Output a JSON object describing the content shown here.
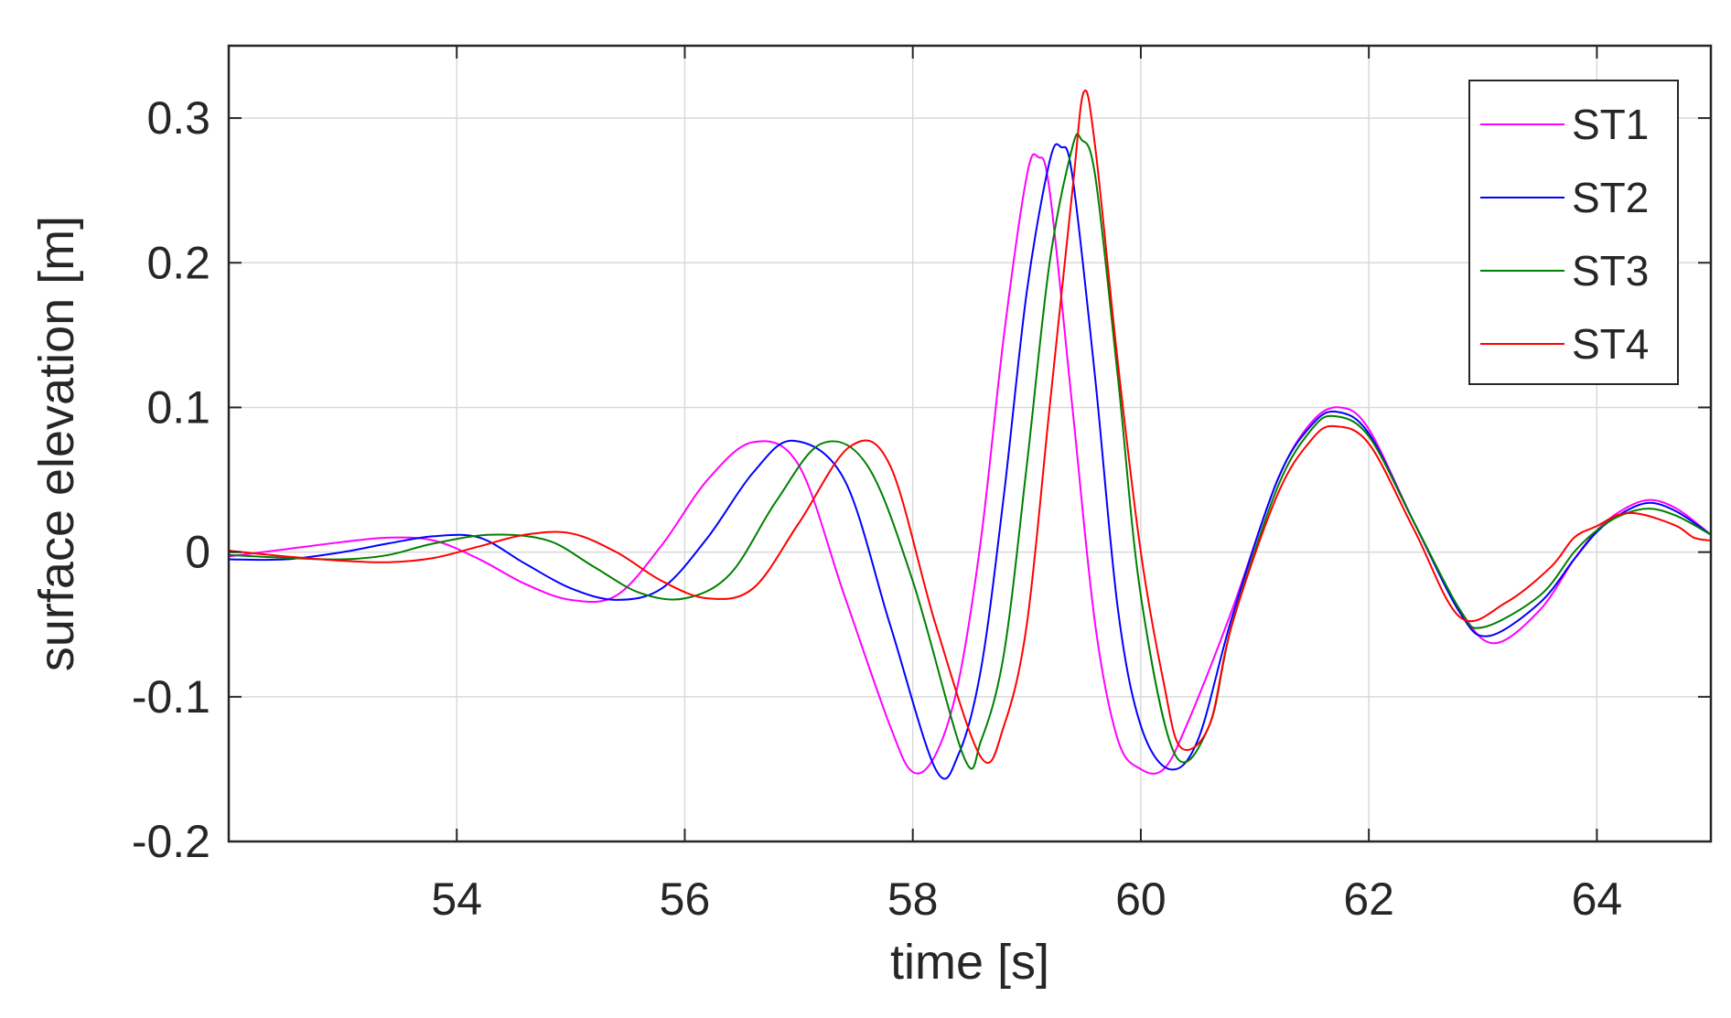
{
  "chart_data": {
    "type": "line",
    "xlabel": "time [s]",
    "ylabel": "surface elevation [m]",
    "xlim": [
      52,
      65
    ],
    "ylim": [
      -0.2,
      0.35
    ],
    "xticks": [
      54,
      56,
      58,
      60,
      62,
      64
    ],
    "xtick_labels": [
      "54",
      "56",
      "58",
      "60",
      "62",
      "64"
    ],
    "yticks": [
      -0.2,
      -0.1,
      0,
      0.1,
      0.2,
      0.3
    ],
    "ytick_labels": [
      "-0.2",
      "-0.1",
      "0",
      "0.1",
      "0.2",
      "0.3"
    ],
    "grid": true,
    "legend_position": "top-right",
    "series": [
      {
        "name": "ST1",
        "color": "#ff00ff",
        "x": [
          52.0,
          52.5,
          53.0,
          53.4,
          53.8,
          54.2,
          54.6,
          55.0,
          55.4,
          55.8,
          56.2,
          56.6,
          57.0,
          57.4,
          57.8,
          58.0,
          58.2,
          58.4,
          58.6,
          58.8,
          59.0,
          59.1,
          59.2,
          59.4,
          59.6,
          59.8,
          60.0,
          60.2,
          60.4,
          60.8,
          61.2,
          61.5,
          61.75,
          62.0,
          62.4,
          62.8,
          63.1,
          63.5,
          63.8,
          64.0,
          64.2,
          64.45,
          64.7,
          65.0
        ],
        "y": [
          -0.003,
          0.002,
          0.007,
          0.01,
          0.008,
          -0.005,
          -0.022,
          -0.033,
          -0.03,
          0.005,
          0.05,
          0.076,
          0.06,
          -0.03,
          -0.12,
          -0.152,
          -0.14,
          -0.09,
          0.01,
          0.15,
          0.26,
          0.273,
          0.25,
          0.1,
          -0.05,
          -0.13,
          -0.15,
          -0.15,
          -0.12,
          -0.04,
          0.05,
          0.09,
          0.1,
          0.085,
          0.02,
          -0.04,
          -0.063,
          -0.04,
          -0.005,
          0.015,
          0.028,
          0.036,
          0.03,
          0.012
        ]
      },
      {
        "name": "ST2",
        "color": "#0000ff",
        "x": [
          52.0,
          52.5,
          53.0,
          53.4,
          53.8,
          54.2,
          54.6,
          55.0,
          55.4,
          55.8,
          56.2,
          56.6,
          56.95,
          57.4,
          57.8,
          58.2,
          58.4,
          58.6,
          58.8,
          59.0,
          59.2,
          59.3,
          59.4,
          59.6,
          59.8,
          60.0,
          60.25,
          60.5,
          60.8,
          61.2,
          61.5,
          61.72,
          62.0,
          62.4,
          62.8,
          63.05,
          63.5,
          63.8,
          64.0,
          64.2,
          64.45,
          64.7,
          65.0
        ],
        "y": [
          -0.005,
          -0.005,
          0.0,
          0.006,
          0.011,
          0.01,
          -0.008,
          -0.025,
          -0.033,
          -0.025,
          0.01,
          0.055,
          0.077,
          0.05,
          -0.05,
          -0.15,
          -0.14,
          -0.08,
          0.04,
          0.18,
          0.27,
          0.28,
          0.26,
          0.12,
          -0.04,
          -0.12,
          -0.15,
          -0.13,
          -0.045,
          0.05,
          0.088,
          0.097,
          0.082,
          0.02,
          -0.042,
          -0.058,
          -0.035,
          -0.005,
          0.014,
          0.026,
          0.034,
          0.028,
          0.012
        ]
      },
      {
        "name": "ST3",
        "color": "#008000",
        "x": [
          52.0,
          52.5,
          53.0,
          53.4,
          53.8,
          54.3,
          54.8,
          55.2,
          55.6,
          56.0,
          56.4,
          56.8,
          57.2,
          57.6,
          58.0,
          58.45,
          58.6,
          58.8,
          59.0,
          59.2,
          59.4,
          59.48,
          59.6,
          59.8,
          60.0,
          60.3,
          60.6,
          60.8,
          61.2,
          61.5,
          61.7,
          62.0,
          62.4,
          62.8,
          63.0,
          63.5,
          63.8,
          64.0,
          64.2,
          64.45,
          64.7,
          65.0
        ],
        "y": [
          -0.002,
          -0.004,
          -0.005,
          -0.002,
          0.006,
          0.012,
          0.008,
          -0.01,
          -0.028,
          -0.032,
          -0.015,
          0.035,
          0.075,
          0.06,
          -0.02,
          -0.142,
          -0.13,
          -0.07,
          0.06,
          0.2,
          0.28,
          0.285,
          0.26,
          0.12,
          -0.03,
          -0.14,
          -0.12,
          -0.05,
          0.045,
          0.085,
          0.094,
          0.08,
          0.02,
          -0.04,
          -0.052,
          -0.03,
          0.0,
          0.015,
          0.025,
          0.03,
          0.025,
          0.012
        ]
      },
      {
        "name": "ST4",
        "color": "#ff0000",
        "x": [
          52.0,
          52.5,
          53.0,
          53.4,
          53.8,
          54.2,
          54.6,
          55.0,
          55.4,
          55.8,
          56.2,
          56.6,
          57.0,
          57.45,
          57.8,
          58.2,
          58.6,
          58.8,
          59.0,
          59.2,
          59.4,
          59.5,
          59.6,
          59.8,
          60.0,
          60.2,
          60.35,
          60.6,
          60.8,
          61.2,
          61.5,
          61.7,
          62.0,
          62.4,
          62.8,
          63.2,
          63.6,
          63.8,
          64.0,
          64.2,
          64.4,
          64.7,
          64.85,
          65.0
        ],
        "y": [
          0.001,
          -0.003,
          -0.006,
          -0.007,
          -0.004,
          0.004,
          0.012,
          0.013,
          0.0,
          -0.02,
          -0.032,
          -0.025,
          0.02,
          0.073,
          0.06,
          -0.05,
          -0.142,
          -0.12,
          -0.05,
          0.1,
          0.25,
          0.318,
          0.28,
          0.13,
          0.0,
          -0.09,
          -0.135,
          -0.12,
          -0.05,
          0.04,
          0.078,
          0.087,
          0.075,
          0.015,
          -0.045,
          -0.035,
          -0.01,
          0.01,
          0.018,
          0.026,
          0.026,
          0.018,
          0.01,
          0.008
        ]
      }
    ]
  }
}
